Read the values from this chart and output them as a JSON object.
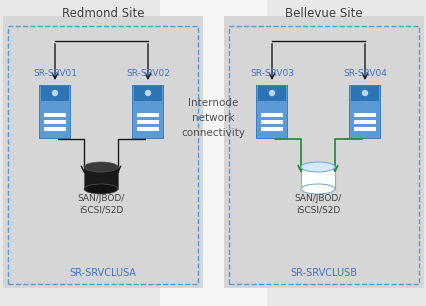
{
  "bg_color": "#f0f0f0",
  "site_bg": "#d6d6d6",
  "outer_bg": "#e8e8e8",
  "center_bg": "#f5f5f5",
  "cluster_border": "#5b9bd5",
  "server_color": "#5b9bd5",
  "server_dark": "#2e75b6",
  "server_light": "#bdd7ee",
  "disk_black": "#1a1a1a",
  "disk_black_top": "#3a3a3a",
  "disk_white_fill": "#ffffff",
  "disk_white_top": "#d6eaf8",
  "disk_border": "#7ab0d0",
  "arrow_black": "#1a1a1a",
  "arrow_green": "#2d8a40",
  "text_blue": "#4472c4",
  "text_dark": "#404040",
  "text_site": "#404040",
  "text_internode": "#505050",
  "redmond_title": "Redmond Site",
  "bellevue_title": "Bellevue Site",
  "internode_text": "Internode\nnetwork\nconnectivity",
  "srv01_label": "SR-SRV01",
  "srv02_label": "SR-SRV02",
  "srv03_label": "SR-SRV03",
  "srv04_label": "SR-SRV04",
  "cluster_a_label": "SR-SRVCLUSА",
  "cluster_b_label": "SR-SRVCLUSB",
  "disk_label": "SAN/JBOD/\niSCSI/S2D"
}
